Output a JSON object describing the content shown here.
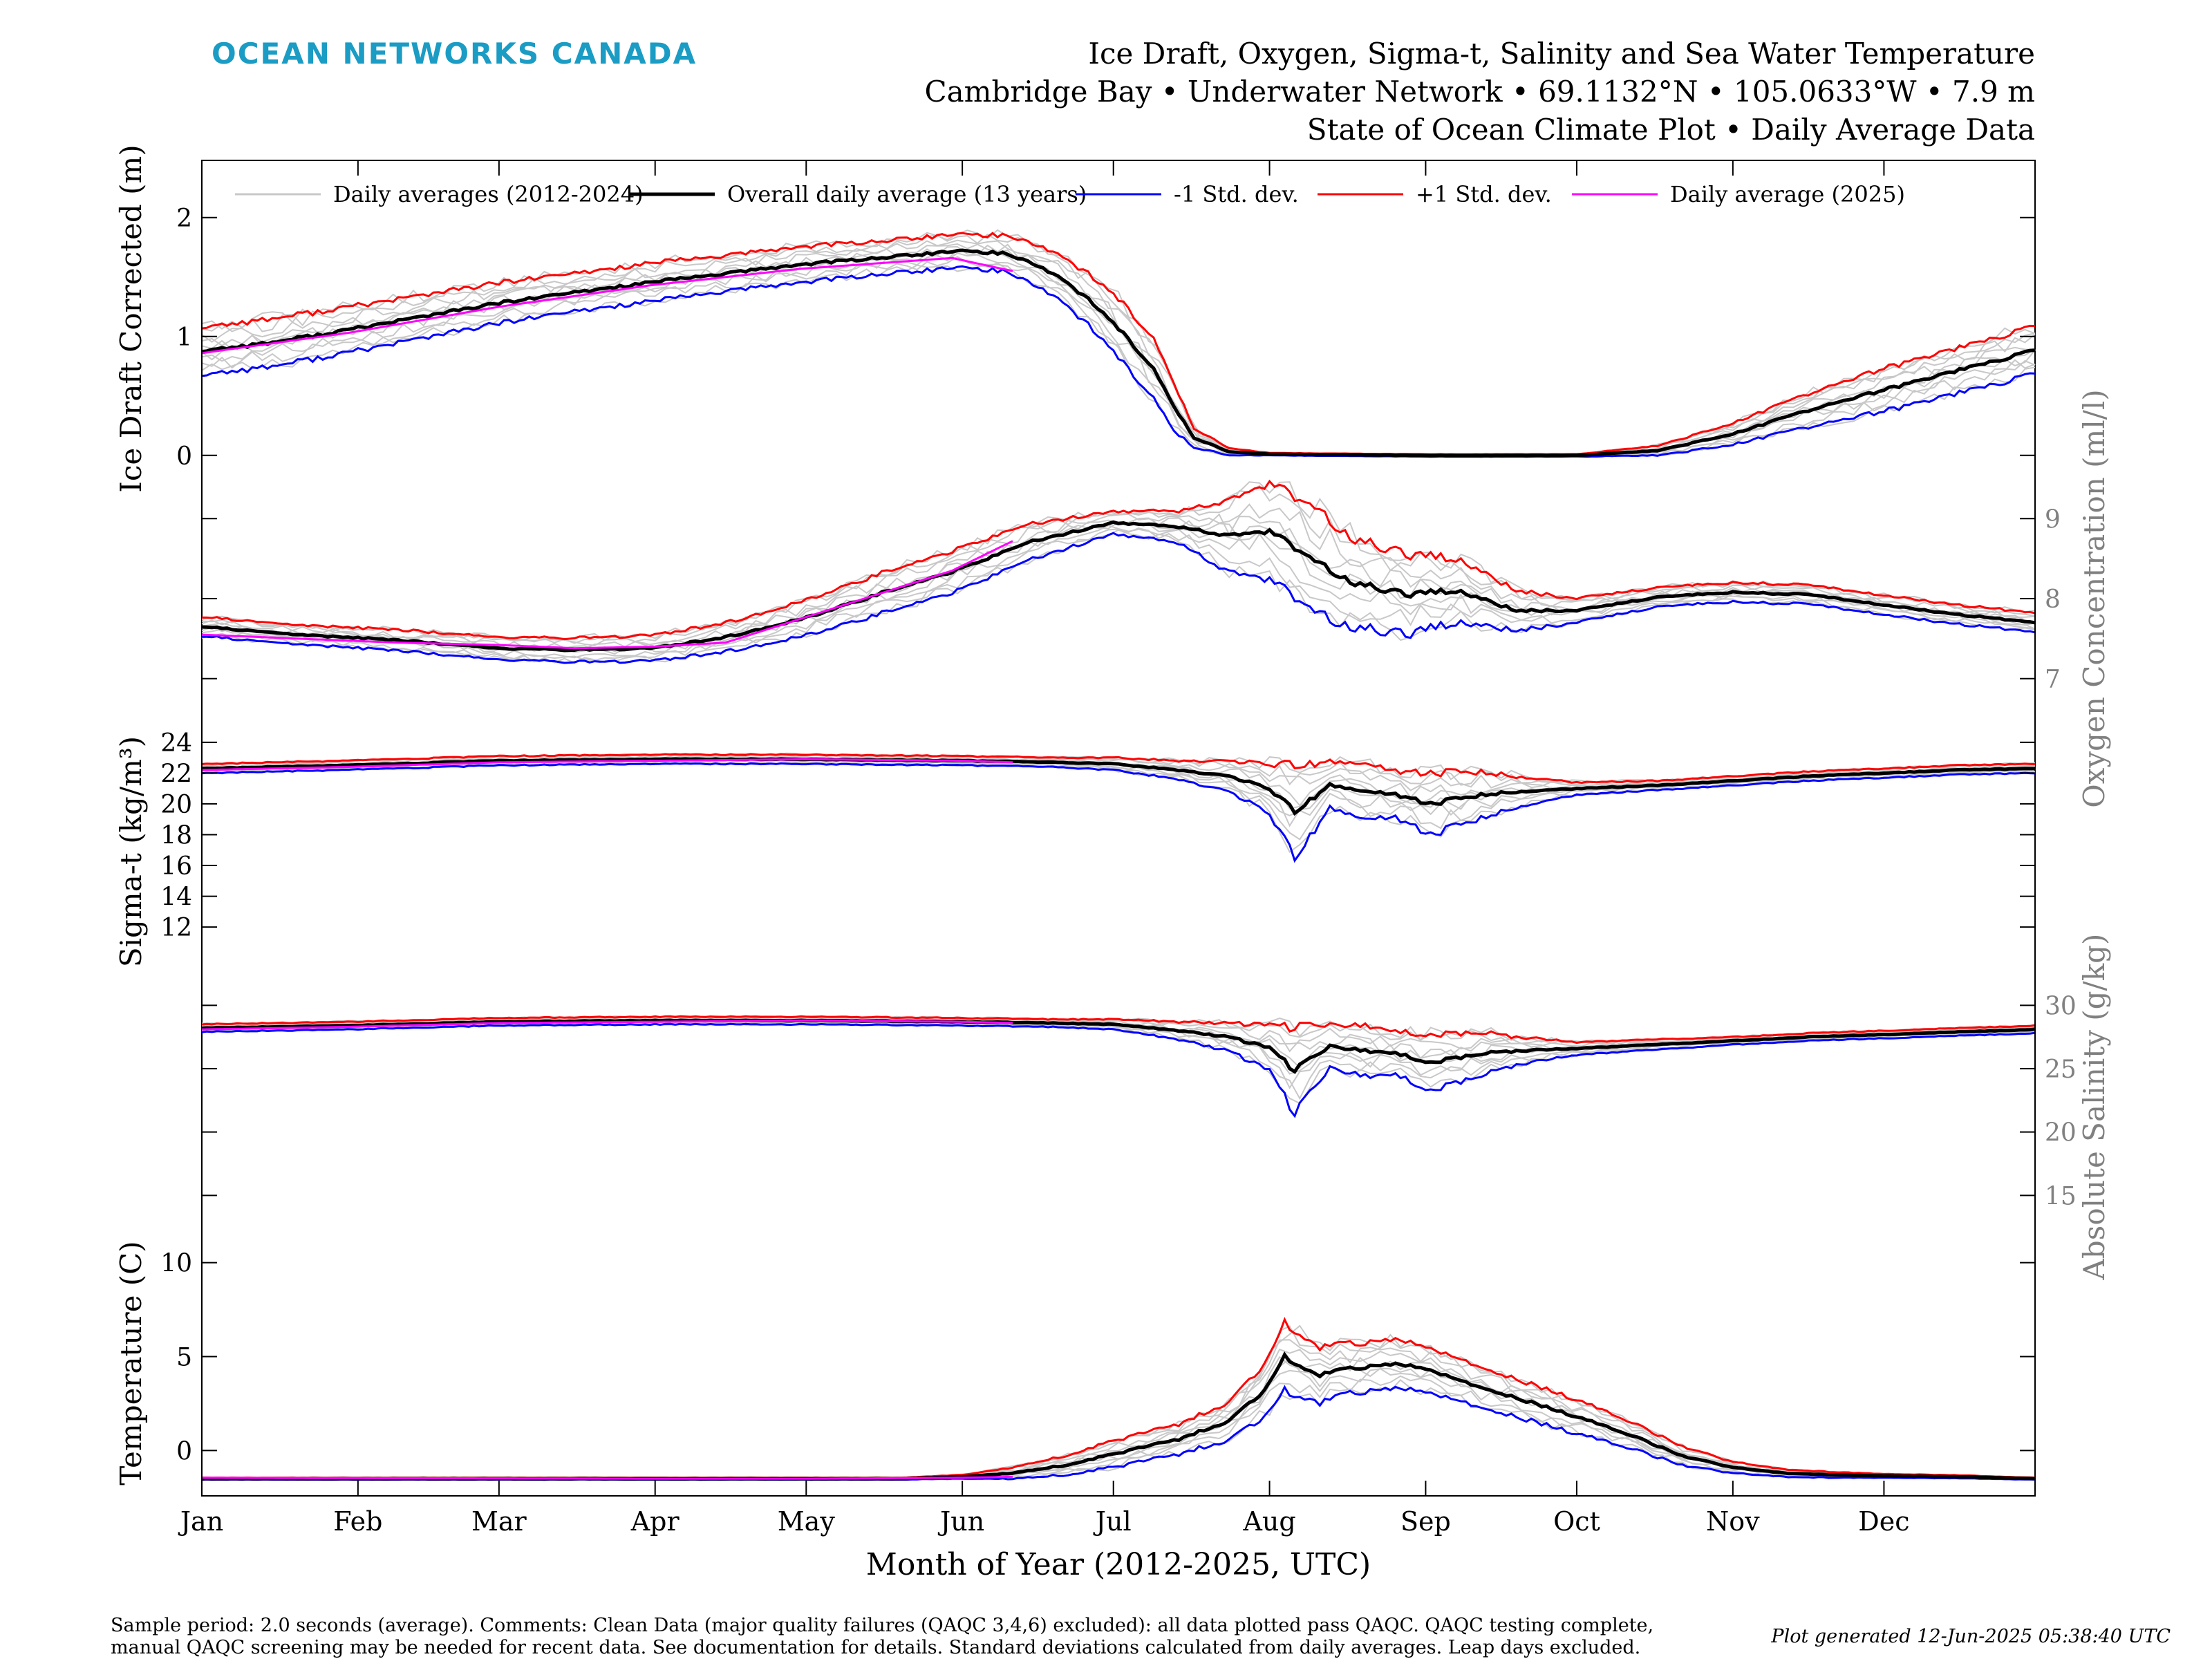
{
  "header": {
    "logo_text": "OCEAN NETWORKS CANADA",
    "title_line1": "Ice Draft, Oxygen, Sigma-t, Salinity and Sea Water Temperature",
    "title_line2": "Cambridge Bay • Underwater Network • 69.1132°N • 105.0633°W • 7.9 m",
    "title_line3": "State of Ocean Climate Plot • Daily Average Data"
  },
  "footer": {
    "comment_line1": "Sample period: 2.0 seconds (average). Comments: Clean Data (major quality failures (QAQC 3,4,6) excluded): all data plotted pass QAQC. QAQC testing complete,",
    "comment_line2": "manual QAQC screening may be needed for recent data. See documentation for details. Standard deviations calculated from daily averages. Leap days excluded.",
    "generated": "Plot generated 12-Jun-2025 05:38:40 UTC"
  },
  "colors": {
    "history": "#c8c8c8",
    "mean": "#000000",
    "minus_std": "#0000ff",
    "plus_std": "#ff0000",
    "current": "#ff00ff",
    "logo": "#1a9cc4",
    "right_axis": "#808080"
  },
  "chart_data": {
    "type": "line",
    "xlabel": "Month of Year (2012-2025, UTC)",
    "x_ticks": [
      "Jan",
      "Feb",
      "Mar",
      "Apr",
      "May",
      "Jun",
      "Jul",
      "Aug",
      "Sep",
      "Oct",
      "Nov",
      "Dec"
    ],
    "x_tick_days": [
      1,
      32,
      60,
      91,
      121,
      152,
      182,
      213,
      244,
      274,
      305,
      335
    ],
    "xlim": [
      1,
      365
    ],
    "legend_position": "top",
    "legend": [
      {
        "key": "history",
        "label": "Daily averages (2012-2024)"
      },
      {
        "key": "mean",
        "label": "Overall daily average (13 years)"
      },
      {
        "key": "minus_std",
        "label": "-1 Std. dev."
      },
      {
        "key": "plus_std",
        "label": "+1 Std. dev."
      },
      {
        "key": "current",
        "label": "Daily average (2025)"
      }
    ],
    "current_year_end_day": 162,
    "panels": [
      {
        "id": "ice",
        "ylabel": "Ice Draft Corrected (m)",
        "axis_side": "left",
        "ticks": [
          0,
          1,
          2
        ],
        "ylim": [
          -0.1,
          2.4
        ],
        "mean_days": [
          1,
          15,
          32,
          45,
          60,
          75,
          91,
          105,
          121,
          135,
          152,
          160,
          166,
          172,
          178,
          184,
          190,
          194,
          198,
          205,
          213,
          244,
          274,
          290,
          305,
          320,
          335,
          350,
          365
        ],
        "mean": [
          0.88,
          0.95,
          1.07,
          1.17,
          1.28,
          1.37,
          1.46,
          1.53,
          1.61,
          1.66,
          1.72,
          1.7,
          1.62,
          1.48,
          1.28,
          1.02,
          0.72,
          0.42,
          0.15,
          0.03,
          0.01,
          0.0,
          0.0,
          0.04,
          0.18,
          0.38,
          0.55,
          0.72,
          0.88
        ],
        "std": [
          0.2,
          0.2,
          0.19,
          0.18,
          0.17,
          0.16,
          0.16,
          0.15,
          0.15,
          0.14,
          0.14,
          0.15,
          0.17,
          0.19,
          0.22,
          0.25,
          0.25,
          0.2,
          0.08,
          0.03,
          0.01,
          0.01,
          0.01,
          0.04,
          0.09,
          0.14,
          0.18,
          0.19,
          0.2
        ],
        "current_days": [
          1,
          30,
          60,
          90,
          120,
          150,
          162
        ],
        "current": [
          0.86,
          1.03,
          1.25,
          1.43,
          1.57,
          1.66,
          1.55
        ]
      },
      {
        "id": "oxygen",
        "ylabel": "Oxygen Concentration (ml/l)",
        "axis_side": "right",
        "ticks": [
          7,
          8,
          9
        ],
        "ylim": [
          6.6,
          9.4
        ],
        "mean_days": [
          1,
          20,
          40,
          60,
          75,
          91,
          105,
          121,
          135,
          152,
          166,
          182,
          195,
          205,
          213,
          222,
          230,
          240,
          250,
          262,
          274,
          290,
          305,
          320,
          335,
          350,
          365
        ],
        "mean": [
          7.65,
          7.55,
          7.48,
          7.38,
          7.36,
          7.38,
          7.52,
          7.76,
          8.05,
          8.38,
          8.72,
          8.95,
          8.9,
          8.8,
          8.85,
          8.45,
          8.2,
          8.05,
          8.1,
          7.85,
          7.85,
          8.02,
          8.08,
          8.05,
          7.92,
          7.8,
          7.7
        ],
        "std": [
          0.12,
          0.12,
          0.13,
          0.14,
          0.15,
          0.16,
          0.18,
          0.22,
          0.25,
          0.26,
          0.22,
          0.14,
          0.2,
          0.45,
          0.6,
          0.65,
          0.55,
          0.5,
          0.4,
          0.25,
          0.15,
          0.12,
          0.12,
          0.12,
          0.12,
          0.12,
          0.12
        ],
        "current_days": [
          1,
          20,
          40,
          60,
          75,
          91,
          105,
          110,
          130,
          150,
          162
        ],
        "current": [
          7.55,
          7.5,
          7.45,
          7.42,
          7.38,
          7.4,
          7.45,
          7.55,
          7.95,
          8.35,
          8.72
        ]
      },
      {
        "id": "sigma",
        "ylabel": "Sigma-t (kg/m³)",
        "axis_side": "left",
        "ticks": [
          12,
          14,
          16,
          18,
          20,
          22,
          24
        ],
        "ylim": [
          9,
          24.8
        ],
        "mean_days": [
          1,
          30,
          60,
          91,
          121,
          152,
          170,
          182,
          195,
          205,
          213,
          218,
          225,
          232,
          238,
          245,
          255,
          262,
          274,
          290,
          305,
          320,
          335,
          350,
          365
        ],
        "mean": [
          22.3,
          22.5,
          22.8,
          22.9,
          22.9,
          22.8,
          22.7,
          22.6,
          22.2,
          21.8,
          21.0,
          19.5,
          21.2,
          20.8,
          20.6,
          20.0,
          20.6,
          20.8,
          21.0,
          21.2,
          21.5,
          21.8,
          22.0,
          22.2,
          22.3
        ],
        "std": [
          0.3,
          0.3,
          0.3,
          0.3,
          0.3,
          0.3,
          0.3,
          0.4,
          0.6,
          1.0,
          1.6,
          3.0,
          1.5,
          1.8,
          1.5,
          2.0,
          1.5,
          1.0,
          0.4,
          0.3,
          0.3,
          0.3,
          0.3,
          0.3,
          0.3
        ],
        "current_days": [
          1,
          30,
          60,
          91,
          121,
          152,
          162
        ],
        "current": [
          22.2,
          22.4,
          22.7,
          22.8,
          22.9,
          22.8,
          22.7
        ]
      },
      {
        "id": "salinity",
        "ylabel": "Absolute Salinity (g/kg)",
        "axis_side": "right",
        "ticks": [
          15,
          20,
          25,
          30
        ],
        "ylim": [
          13,
          31
        ],
        "mean_days": [
          1,
          30,
          60,
          91,
          121,
          152,
          170,
          182,
          195,
          205,
          213,
          218,
          225,
          232,
          238,
          245,
          255,
          262,
          274,
          290,
          305,
          320,
          335,
          350,
          365
        ],
        "mean": [
          28.2,
          28.4,
          28.7,
          28.8,
          28.8,
          28.7,
          28.6,
          28.5,
          28.0,
          27.5,
          26.6,
          24.9,
          26.8,
          26.4,
          26.2,
          25.5,
          26.2,
          26.4,
          26.6,
          26.9,
          27.2,
          27.5,
          27.7,
          27.9,
          28.1
        ],
        "std": [
          0.3,
          0.3,
          0.3,
          0.3,
          0.3,
          0.3,
          0.3,
          0.4,
          0.7,
          1.1,
          1.8,
          3.4,
          1.7,
          2.0,
          1.7,
          2.2,
          1.7,
          1.1,
          0.5,
          0.4,
          0.3,
          0.3,
          0.3,
          0.3,
          0.3
        ],
        "current_days": [
          1,
          30,
          60,
          91,
          121,
          152,
          162
        ],
        "current": [
          28.1,
          28.3,
          28.6,
          28.7,
          28.8,
          28.7,
          28.6
        ]
      },
      {
        "id": "temperature",
        "ylabel": "Temperature (C)",
        "axis_side": "left",
        "ticks": [
          0,
          5,
          10
        ],
        "ylim": [
          -1.9,
          11.2
        ],
        "mean_days": [
          1,
          30,
          60,
          91,
          121,
          140,
          152,
          162,
          172,
          182,
          195,
          205,
          212,
          216,
          222,
          230,
          238,
          244,
          252,
          262,
          274,
          285,
          295,
          305,
          315,
          325,
          335,
          350,
          365
        ],
        "mean": [
          -1.5,
          -1.5,
          -1.5,
          -1.5,
          -1.5,
          -1.5,
          -1.4,
          -1.2,
          -0.8,
          -0.2,
          0.6,
          1.6,
          3.2,
          5.0,
          4.0,
          4.4,
          4.6,
          4.4,
          3.6,
          2.8,
          1.8,
          0.8,
          -0.3,
          -0.9,
          -1.2,
          -1.3,
          -1.35,
          -1.4,
          -1.5
        ],
        "std": [
          0.05,
          0.05,
          0.05,
          0.05,
          0.05,
          0.05,
          0.1,
          0.3,
          0.5,
          0.7,
          0.8,
          1.0,
          1.4,
          1.8,
          1.5,
          1.3,
          1.3,
          1.2,
          1.1,
          1.0,
          0.9,
          0.7,
          0.5,
          0.3,
          0.2,
          0.15,
          0.1,
          0.08,
          0.05
        ],
        "current_days": [
          1,
          30,
          60,
          91,
          121,
          152,
          162
        ],
        "current": [
          -1.45,
          -1.47,
          -1.48,
          -1.5,
          -1.5,
          -1.45,
          -1.4
        ]
      }
    ]
  }
}
